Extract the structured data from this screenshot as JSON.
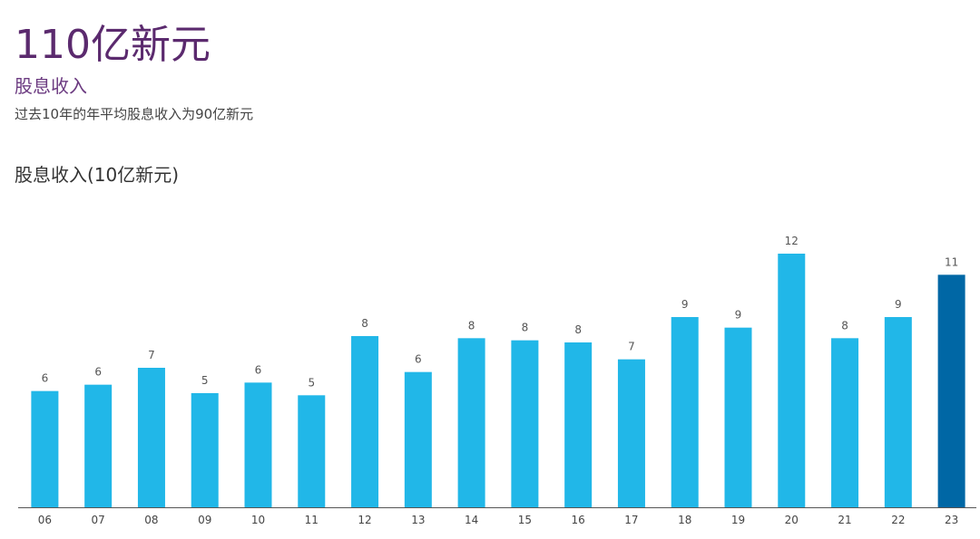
{
  "header": {
    "headline": "110亿新元",
    "subtitle": "股息收入",
    "note": "过去10年的年平均股息收入为90亿新元"
  },
  "chart_data": {
    "type": "bar",
    "title": "股息收入(10亿新元)",
    "categories": [
      "06",
      "07",
      "08",
      "09",
      "10",
      "11",
      "12",
      "13",
      "14",
      "15",
      "16",
      "17",
      "18",
      "19",
      "20",
      "21",
      "22",
      "23"
    ],
    "values": [
      5.5,
      5.8,
      6.6,
      5.4,
      5.9,
      5.3,
      8.1,
      6.4,
      8.0,
      7.9,
      7.8,
      7.0,
      9.0,
      8.5,
      12.0,
      8.0,
      9.0,
      11.0
    ],
    "value_labels": [
      "6",
      "6",
      "7",
      "5",
      "6",
      "5",
      "8",
      "6",
      "8",
      "8",
      "8",
      "7",
      "9",
      "9",
      "12",
      "8",
      "9",
      "11"
    ],
    "colors": [
      "#21b7e8",
      "#21b7e8",
      "#21b7e8",
      "#21b7e8",
      "#21b7e8",
      "#21b7e8",
      "#21b7e8",
      "#21b7e8",
      "#21b7e8",
      "#21b7e8",
      "#21b7e8",
      "#21b7e8",
      "#21b7e8",
      "#21b7e8",
      "#21b7e8",
      "#21b7e8",
      "#21b7e8",
      "#0067a5"
    ],
    "ylim": [
      0,
      12
    ]
  }
}
